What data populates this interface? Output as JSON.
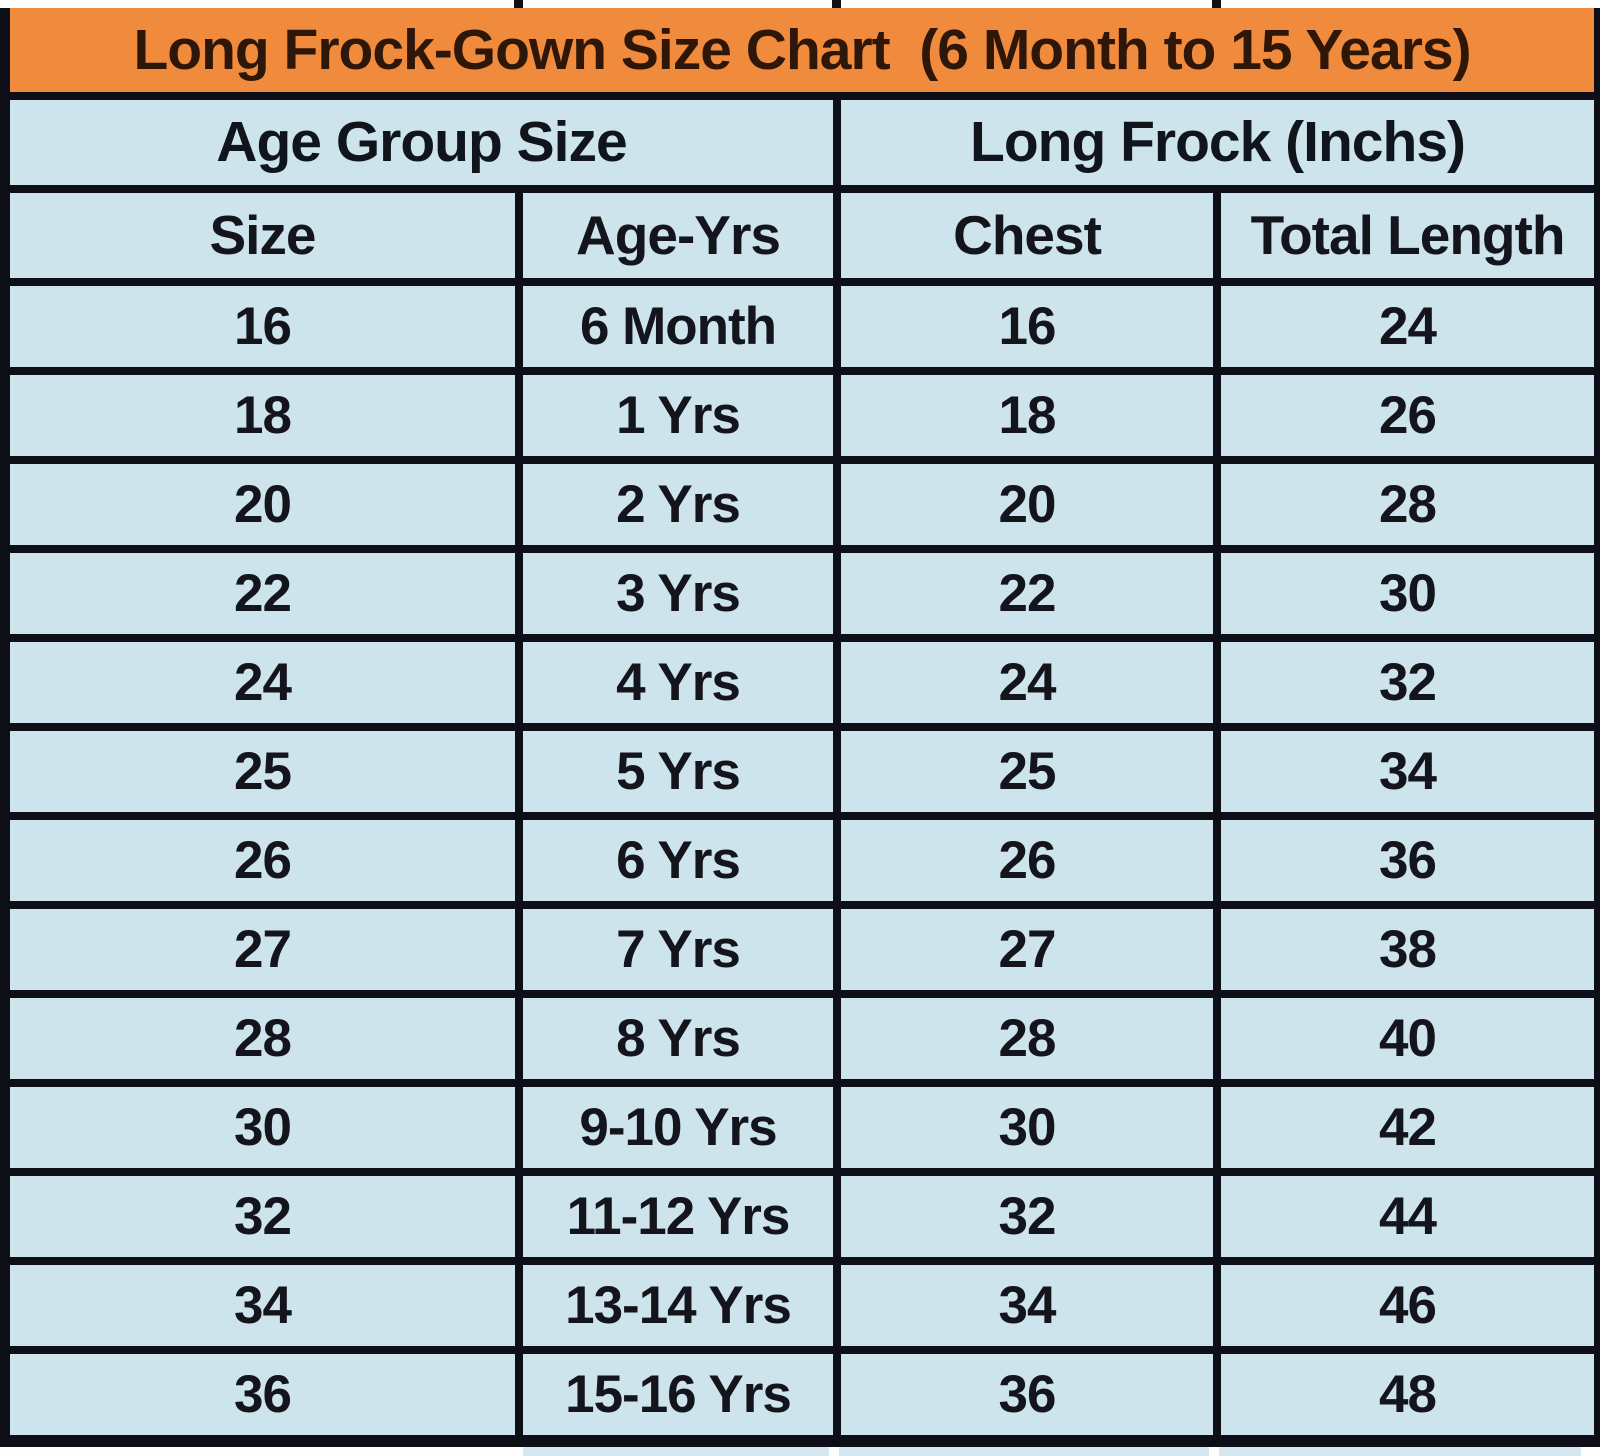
{
  "title": "Long Frock-Gown Size Chart  (6 Month to 15 Years)",
  "groups": {
    "age": "Age Group Size",
    "frock": "Long Frock (Inchs)"
  },
  "columns": [
    "Size",
    "Age-Yrs",
    "Chest",
    "Total Length"
  ],
  "rows": [
    [
      "16",
      "6 Month",
      "16",
      "24"
    ],
    [
      "18",
      "1 Yrs",
      "18",
      "26"
    ],
    [
      "20",
      "2 Yrs",
      "20",
      "28"
    ],
    [
      "22",
      "3 Yrs",
      "22",
      "30"
    ],
    [
      "24",
      "4 Yrs",
      "24",
      "32"
    ],
    [
      "25",
      "5 Yrs",
      "25",
      "34"
    ],
    [
      "26",
      "6 Yrs",
      "26",
      "36"
    ],
    [
      "27",
      "7 Yrs",
      "27",
      "38"
    ],
    [
      "28",
      "8 Yrs",
      "28",
      "40"
    ],
    [
      "30",
      "9-10 Yrs",
      "30",
      "42"
    ],
    [
      "32",
      "11-12 Yrs",
      "32",
      "44"
    ],
    [
      "34",
      "13-14 Yrs",
      "34",
      "46"
    ],
    [
      "36",
      "15-16 Yrs",
      "36",
      "48"
    ]
  ],
  "colors": {
    "title_bg": "#f08a3d",
    "cell_bg": "#cde4ec",
    "gridline": "#0e0e16",
    "title_text": "#2e1708",
    "cell_text": "#14141d"
  },
  "chart_data": {
    "type": "table",
    "title": "Long Frock-Gown Size Chart (6 Month to 15 Years)",
    "column_groups": [
      {
        "label": "Age Group Size",
        "spans": [
          "Size",
          "Age-Yrs"
        ]
      },
      {
        "label": "Long Frock (Inchs)",
        "spans": [
          "Chest",
          "Total Length"
        ]
      }
    ],
    "columns": [
      "Size",
      "Age-Yrs",
      "Chest",
      "Total Length"
    ],
    "rows": [
      [
        "16",
        "6 Month",
        "16",
        "24"
      ],
      [
        "18",
        "1 Yrs",
        "18",
        "26"
      ],
      [
        "20",
        "2 Yrs",
        "20",
        "28"
      ],
      [
        "22",
        "3 Yrs",
        "22",
        "30"
      ],
      [
        "24",
        "4 Yrs",
        "24",
        "32"
      ],
      [
        "25",
        "5 Yrs",
        "25",
        "34"
      ],
      [
        "26",
        "6 Yrs",
        "26",
        "36"
      ],
      [
        "27",
        "7 Yrs",
        "27",
        "38"
      ],
      [
        "28",
        "8 Yrs",
        "28",
        "40"
      ],
      [
        "30",
        "9-10 Yrs",
        "30",
        "42"
      ],
      [
        "32",
        "11-12 Yrs",
        "32",
        "44"
      ],
      [
        "34",
        "13-14 Yrs",
        "34",
        "46"
      ],
      [
        "36",
        "15-16 Yrs",
        "36",
        "48"
      ]
    ]
  }
}
